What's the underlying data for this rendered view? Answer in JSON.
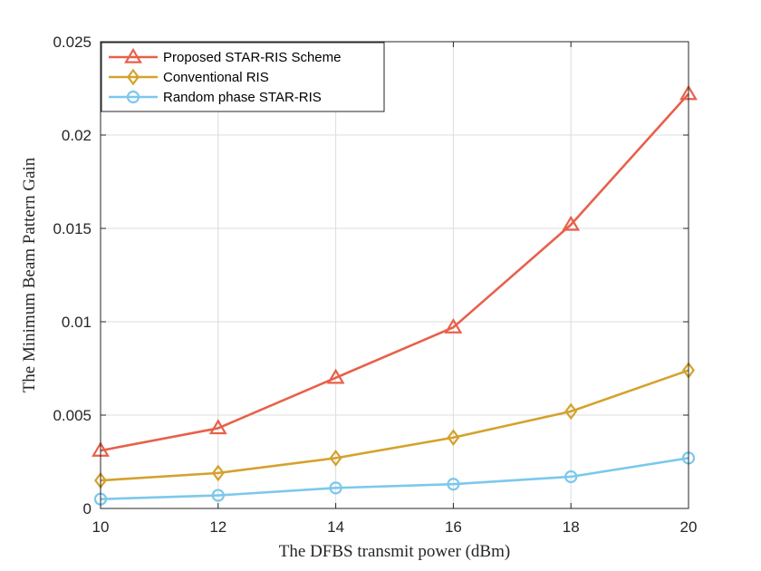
{
  "chart_data": {
    "type": "line",
    "title": "",
    "xlabel": "The DFBS transmit power (dBm)",
    "ylabel": "The Minimum Beam Pattern Gain",
    "x": [
      10,
      12,
      14,
      16,
      18,
      20
    ],
    "xlim": [
      10,
      20
    ],
    "ylim": [
      0,
      0.025
    ],
    "xticks": [
      10,
      12,
      14,
      16,
      18,
      20
    ],
    "xtick_labels": [
      "10",
      "12",
      "14",
      "16",
      "18",
      "20"
    ],
    "yticks": [
      0,
      0.005,
      0.01,
      0.015,
      0.02,
      0.025
    ],
    "ytick_labels": [
      "0",
      "0.005",
      "0.01",
      "0.015",
      "0.02",
      "0.025"
    ],
    "grid": true,
    "legend_position": "top-left",
    "series": [
      {
        "name": "Proposed STAR-RIS Scheme",
        "marker": "triangle",
        "color": "#E8604A",
        "values": [
          0.0031,
          0.0043,
          0.007,
          0.0097,
          0.0152,
          0.0222
        ]
      },
      {
        "name": "Conventional RIS",
        "marker": "diamond",
        "color": "#D4A22C",
        "values": [
          0.0015,
          0.0019,
          0.0027,
          0.0038,
          0.0052,
          0.0074
        ]
      },
      {
        "name": "Random phase STAR-RIS",
        "marker": "circle",
        "color": "#7CC8EC",
        "values": [
          0.0005,
          0.0007,
          0.0011,
          0.0013,
          0.0017,
          0.0027
        ]
      }
    ]
  }
}
